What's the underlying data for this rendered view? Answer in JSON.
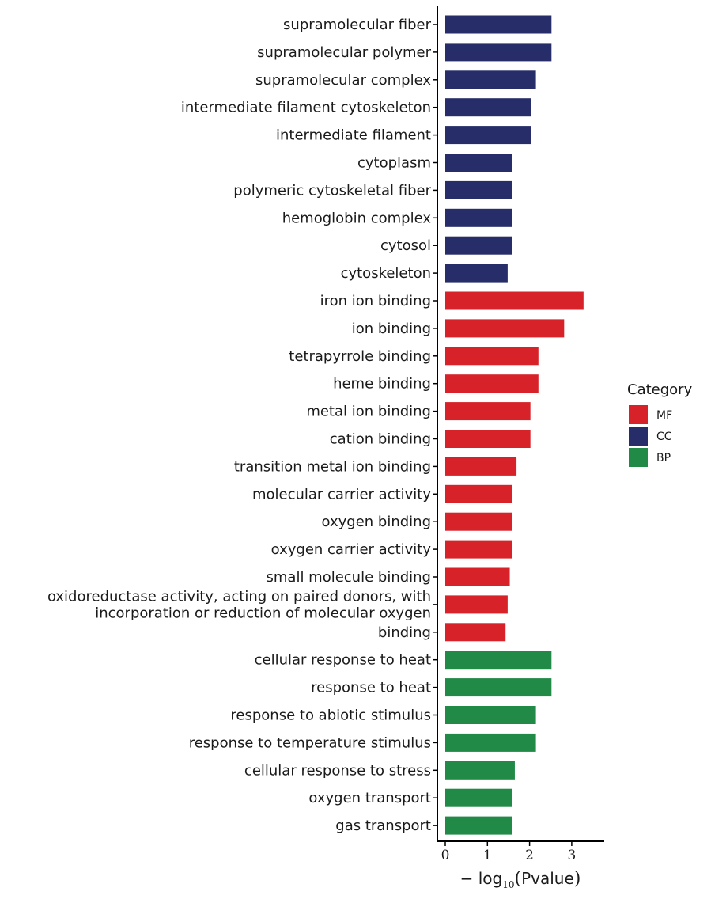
{
  "chart_data": {
    "type": "bar",
    "orientation": "horizontal",
    "categories": [
      [
        "supramolecular fiber"
      ],
      [
        "supramolecular polymer"
      ],
      [
        "supramolecular complex"
      ],
      [
        "intermediate filament cytoskeleton"
      ],
      [
        "intermediate filament"
      ],
      [
        "cytoplasm"
      ],
      [
        "polymeric cytoskeletal fiber"
      ],
      [
        "hemoglobin complex"
      ],
      [
        "cytosol"
      ],
      [
        "cytoskeleton"
      ],
      [
        "iron ion binding"
      ],
      [
        "ion binding"
      ],
      [
        "tetrapyrrole binding"
      ],
      [
        "heme binding"
      ],
      [
        "metal ion binding"
      ],
      [
        "cation binding"
      ],
      [
        "transition metal ion binding"
      ],
      [
        "molecular carrier activity"
      ],
      [
        "oxygen binding"
      ],
      [
        "oxygen carrier activity"
      ],
      [
        "small molecule binding"
      ],
      [
        "oxidoreductase activity, acting on paired donors, with",
        "incorporation or reduction of molecular oxygen"
      ],
      [
        "binding"
      ],
      [
        "cellular response to heat"
      ],
      [
        "response to heat"
      ],
      [
        "response to abiotic stimulus"
      ],
      [
        "response to temperature stimulus"
      ],
      [
        "cellular response to stress"
      ],
      [
        "oxygen transport"
      ],
      [
        "gas transport"
      ]
    ],
    "values": [
      2.52,
      2.52,
      2.15,
      2.03,
      2.03,
      1.58,
      1.58,
      1.58,
      1.58,
      1.48,
      3.28,
      2.82,
      2.21,
      2.21,
      2.02,
      2.02,
      1.69,
      1.58,
      1.58,
      1.58,
      1.53,
      1.48,
      1.43,
      2.52,
      2.52,
      2.15,
      2.15,
      1.65,
      1.58,
      1.58
    ],
    "groups": [
      "CC",
      "CC",
      "CC",
      "CC",
      "CC",
      "CC",
      "CC",
      "CC",
      "CC",
      "CC",
      "MF",
      "MF",
      "MF",
      "MF",
      "MF",
      "MF",
      "MF",
      "MF",
      "MF",
      "MF",
      "MF",
      "MF",
      "MF",
      "BP",
      "BP",
      "BP",
      "BP",
      "BP",
      "BP",
      "BP"
    ],
    "xlim": [
      0,
      3.8
    ],
    "xticks": [
      "0",
      "1",
      "2",
      "3"
    ],
    "xlabel_prefix": "− log",
    "xlabel_sub": "10",
    "xlabel_body": "Pvalue",
    "legend": {
      "title": "Category",
      "position": "right",
      "entries": [
        {
          "key": "MF",
          "label": "MF",
          "color": "#d7222a"
        },
        {
          "key": "CC",
          "label": "CC",
          "color": "#262d69"
        },
        {
          "key": "BP",
          "label": "BP",
          "color": "#218a47"
        }
      ]
    },
    "grid": false
  }
}
